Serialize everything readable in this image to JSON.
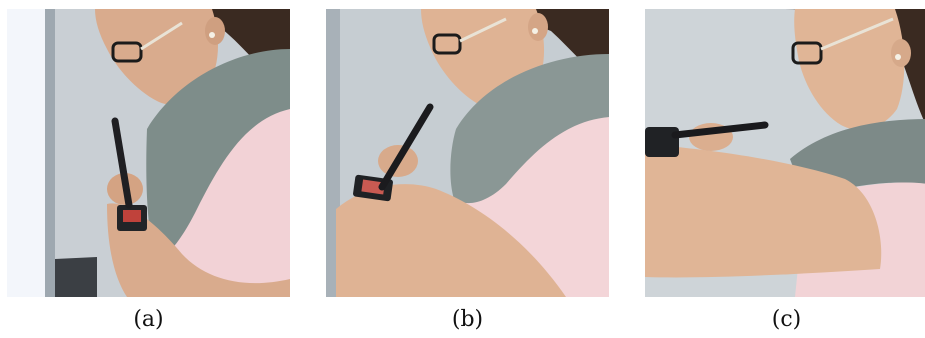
{
  "figure": {
    "panels": [
      {
        "caption": "(a)",
        "colors": {
          "wall": "#c9cfd4",
          "window": "#f3f6fb",
          "scarf": "#7e8d8a",
          "shirt": "#f2d2d6",
          "skin": "#d9ab8d",
          "hair": "#3a2a21",
          "pen": "#1f1f22",
          "watch": "#222427"
        }
      },
      {
        "caption": "(b)",
        "colors": {
          "wall": "#c6cdd2",
          "scarf": "#8a9795",
          "shirt": "#f3d5d8",
          "skin": "#dfb394",
          "hair": "#3a2a21",
          "pen": "#1b1b1e",
          "watch": "#1f2124"
        }
      },
      {
        "caption": "(c)",
        "colors": {
          "wall": "#ced4d8",
          "scarf": "#7d8a88",
          "shirt": "#f2d3d6",
          "skin": "#e0b596",
          "hair": "#3a2a21",
          "pen": "#1a1a1d",
          "watch": "#202225"
        }
      }
    ]
  }
}
